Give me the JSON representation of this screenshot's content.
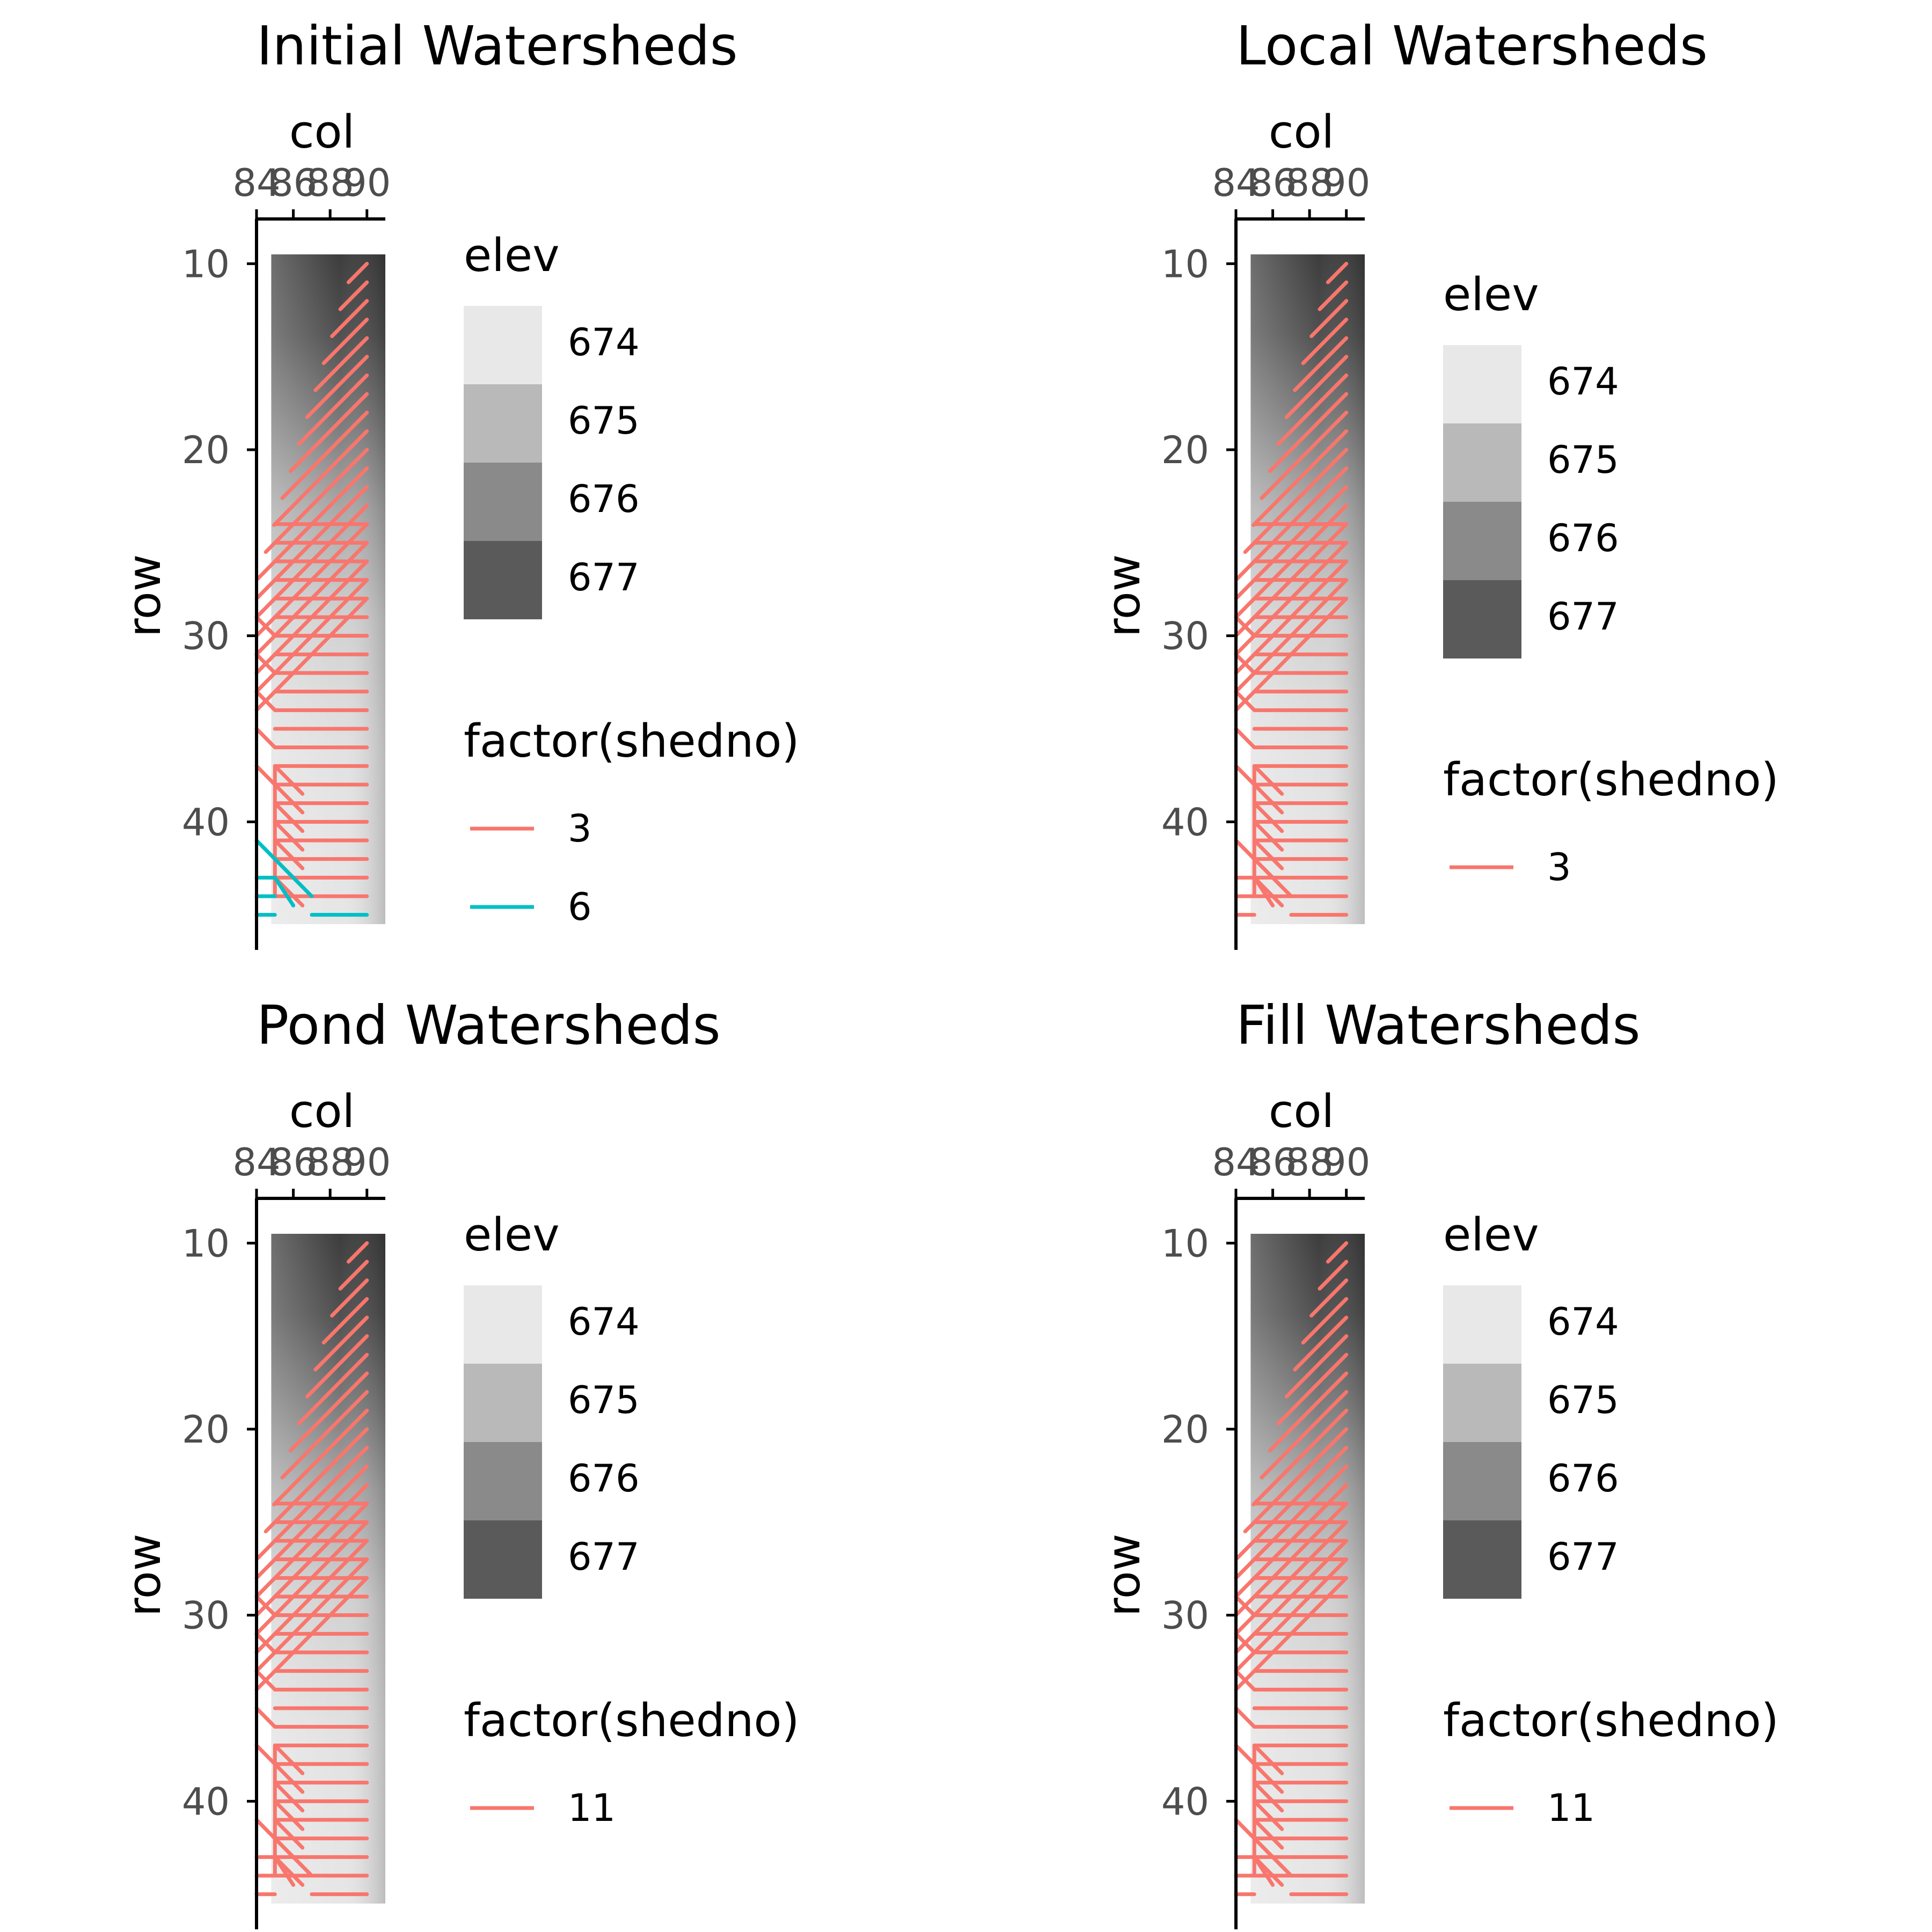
{
  "chart_data": [
    {
      "type": "heatmap",
      "title": "Initial Watersheds",
      "xlabel": "col",
      "ylabel": "row",
      "x_ticks": [
        "84",
        "86",
        "88",
        "90"
      ],
      "y_ticks": [
        "10",
        "20",
        "30",
        "40"
      ],
      "x_range": [
        84,
        91
      ],
      "y_range": [
        9.5,
        45.5
      ],
      "y_reversed": true,
      "x_axis_position": "top",
      "fill_legend": {
        "title": "elev",
        "labels": [
          "674",
          "675",
          "676",
          "677"
        ],
        "colors": [
          "#e8e8e8",
          "#b9b9b9",
          "#8a8a8a",
          "#5a5a5a"
        ]
      },
      "color_legend": {
        "title": "factor(shedno)",
        "entries": [
          {
            "label": "3",
            "color": "#f8766d"
          },
          {
            "label": "6",
            "color": "#00bfc4"
          }
        ]
      },
      "legend_position": "right"
    },
    {
      "type": "heatmap",
      "title": "Local Watersheds",
      "xlabel": "col",
      "ylabel": "row",
      "x_ticks": [
        "84",
        "86",
        "88",
        "90"
      ],
      "y_ticks": [
        "10",
        "20",
        "30",
        "40"
      ],
      "x_range": [
        84,
        91
      ],
      "y_range": [
        9.5,
        45.5
      ],
      "y_reversed": true,
      "x_axis_position": "top",
      "fill_legend": {
        "title": "elev",
        "labels": [
          "674",
          "675",
          "676",
          "677"
        ],
        "colors": [
          "#e8e8e8",
          "#b9b9b9",
          "#8a8a8a",
          "#5a5a5a"
        ]
      },
      "color_legend": {
        "title": "factor(shedno)",
        "entries": [
          {
            "label": "3",
            "color": "#f8766d"
          }
        ]
      },
      "legend_position": "right"
    },
    {
      "type": "heatmap",
      "title": "Pond Watersheds",
      "xlabel": "col",
      "ylabel": "row",
      "x_ticks": [
        "84",
        "86",
        "88",
        "90"
      ],
      "y_ticks": [
        "10",
        "20",
        "30",
        "40"
      ],
      "x_range": [
        84,
        91
      ],
      "y_range": [
        9.5,
        45.5
      ],
      "y_reversed": true,
      "x_axis_position": "top",
      "fill_legend": {
        "title": "elev",
        "labels": [
          "674",
          "675",
          "676",
          "677"
        ],
        "colors": [
          "#e8e8e8",
          "#b9b9b9",
          "#8a8a8a",
          "#5a5a5a"
        ]
      },
      "color_legend": {
        "title": "factor(shedno)",
        "entries": [
          {
            "label": "11",
            "color": "#f8766d"
          }
        ]
      },
      "legend_position": "right"
    },
    {
      "type": "heatmap",
      "title": "Fill Watersheds",
      "xlabel": "col",
      "ylabel": "row",
      "x_ticks": [
        "84",
        "86",
        "88",
        "90"
      ],
      "y_ticks": [
        "10",
        "20",
        "30",
        "40"
      ],
      "x_range": [
        84,
        91
      ],
      "y_range": [
        9.5,
        45.5
      ],
      "y_reversed": true,
      "x_axis_position": "top",
      "fill_legend": {
        "title": "elev",
        "labels": [
          "674",
          "675",
          "676",
          "677"
        ],
        "colors": [
          "#e8e8e8",
          "#b9b9b9",
          "#8a8a8a",
          "#5a5a5a"
        ]
      },
      "color_legend": {
        "title": "factor(shedno)",
        "entries": [
          {
            "label": "11",
            "color": "#f8766d"
          }
        ]
      },
      "legend_position": "right"
    }
  ]
}
